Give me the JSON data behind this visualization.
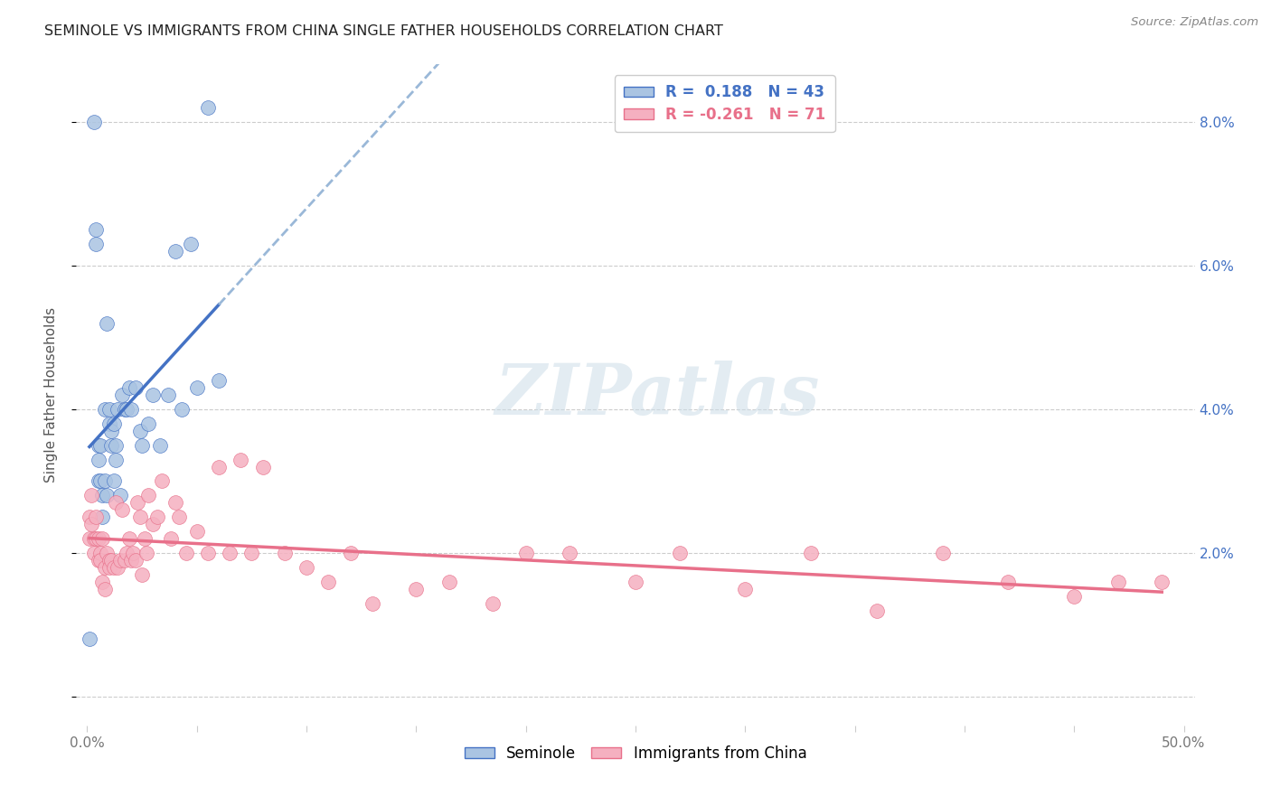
{
  "title": "SEMINOLE VS IMMIGRANTS FROM CHINA SINGLE FATHER HOUSEHOLDS CORRELATION CHART",
  "source": "Source: ZipAtlas.com",
  "ylabel": "Single Father Households",
  "y_ticks": [
    0.0,
    0.02,
    0.04,
    0.06,
    0.08
  ],
  "y_tick_labels": [
    "",
    "2.0%",
    "4.0%",
    "6.0%",
    "8.0%"
  ],
  "x_ticks": [
    0.0,
    0.05,
    0.1,
    0.15,
    0.2,
    0.25,
    0.3,
    0.35,
    0.4,
    0.45,
    0.5
  ],
  "x_tick_labels": [
    "0.0%",
    "",
    "",
    "",
    "",
    "",
    "",
    "",
    "",
    "",
    "50.0%"
  ],
  "xlim": [
    -0.005,
    0.505
  ],
  "ylim": [
    -0.004,
    0.088
  ],
  "seminole_R": 0.188,
  "seminole_N": 43,
  "china_R": -0.261,
  "china_N": 71,
  "seminole_color": "#aac4e2",
  "china_color": "#f5b0c0",
  "seminole_line_color": "#4472c4",
  "china_line_color": "#e8708a",
  "trendline_dash_color": "#9ab8d8",
  "background_color": "#ffffff",
  "watermark": "ZIPatlas",
  "legend_label_seminole": "Seminole",
  "legend_label_china": "Immigrants from China",
  "seminole_x": [
    0.001,
    0.003,
    0.004,
    0.004,
    0.005,
    0.005,
    0.005,
    0.006,
    0.006,
    0.007,
    0.007,
    0.008,
    0.008,
    0.009,
    0.009,
    0.01,
    0.01,
    0.011,
    0.011,
    0.012,
    0.012,
    0.013,
    0.013,
    0.014,
    0.015,
    0.016,
    0.017,
    0.018,
    0.019,
    0.02,
    0.022,
    0.024,
    0.025,
    0.028,
    0.03,
    0.033,
    0.037,
    0.04,
    0.043,
    0.047,
    0.05,
    0.055,
    0.06
  ],
  "seminole_y": [
    0.008,
    0.08,
    0.065,
    0.063,
    0.035,
    0.033,
    0.03,
    0.035,
    0.03,
    0.028,
    0.025,
    0.04,
    0.03,
    0.052,
    0.028,
    0.04,
    0.038,
    0.037,
    0.035,
    0.038,
    0.03,
    0.035,
    0.033,
    0.04,
    0.028,
    0.042,
    0.04,
    0.04,
    0.043,
    0.04,
    0.043,
    0.037,
    0.035,
    0.038,
    0.042,
    0.035,
    0.042,
    0.062,
    0.04,
    0.063,
    0.043,
    0.082,
    0.044
  ],
  "china_x": [
    0.001,
    0.001,
    0.002,
    0.002,
    0.003,
    0.003,
    0.004,
    0.004,
    0.005,
    0.005,
    0.006,
    0.006,
    0.007,
    0.007,
    0.008,
    0.008,
    0.009,
    0.01,
    0.01,
    0.011,
    0.012,
    0.013,
    0.014,
    0.015,
    0.016,
    0.017,
    0.018,
    0.019,
    0.02,
    0.021,
    0.022,
    0.023,
    0.024,
    0.025,
    0.026,
    0.027,
    0.028,
    0.03,
    0.032,
    0.034,
    0.038,
    0.04,
    0.042,
    0.045,
    0.05,
    0.055,
    0.06,
    0.065,
    0.07,
    0.075,
    0.08,
    0.09,
    0.1,
    0.11,
    0.12,
    0.13,
    0.15,
    0.165,
    0.185,
    0.2,
    0.22,
    0.25,
    0.27,
    0.3,
    0.33,
    0.36,
    0.39,
    0.42,
    0.45,
    0.47,
    0.49
  ],
  "china_y": [
    0.025,
    0.022,
    0.028,
    0.024,
    0.022,
    0.02,
    0.025,
    0.022,
    0.022,
    0.019,
    0.02,
    0.019,
    0.022,
    0.016,
    0.018,
    0.015,
    0.02,
    0.019,
    0.018,
    0.019,
    0.018,
    0.027,
    0.018,
    0.019,
    0.026,
    0.019,
    0.02,
    0.022,
    0.019,
    0.02,
    0.019,
    0.027,
    0.025,
    0.017,
    0.022,
    0.02,
    0.028,
    0.024,
    0.025,
    0.03,
    0.022,
    0.027,
    0.025,
    0.02,
    0.023,
    0.02,
    0.032,
    0.02,
    0.033,
    0.02,
    0.032,
    0.02,
    0.018,
    0.016,
    0.02,
    0.013,
    0.015,
    0.016,
    0.013,
    0.02,
    0.02,
    0.016,
    0.02,
    0.015,
    0.02,
    0.012,
    0.02,
    0.016,
    0.014,
    0.016,
    0.016
  ]
}
